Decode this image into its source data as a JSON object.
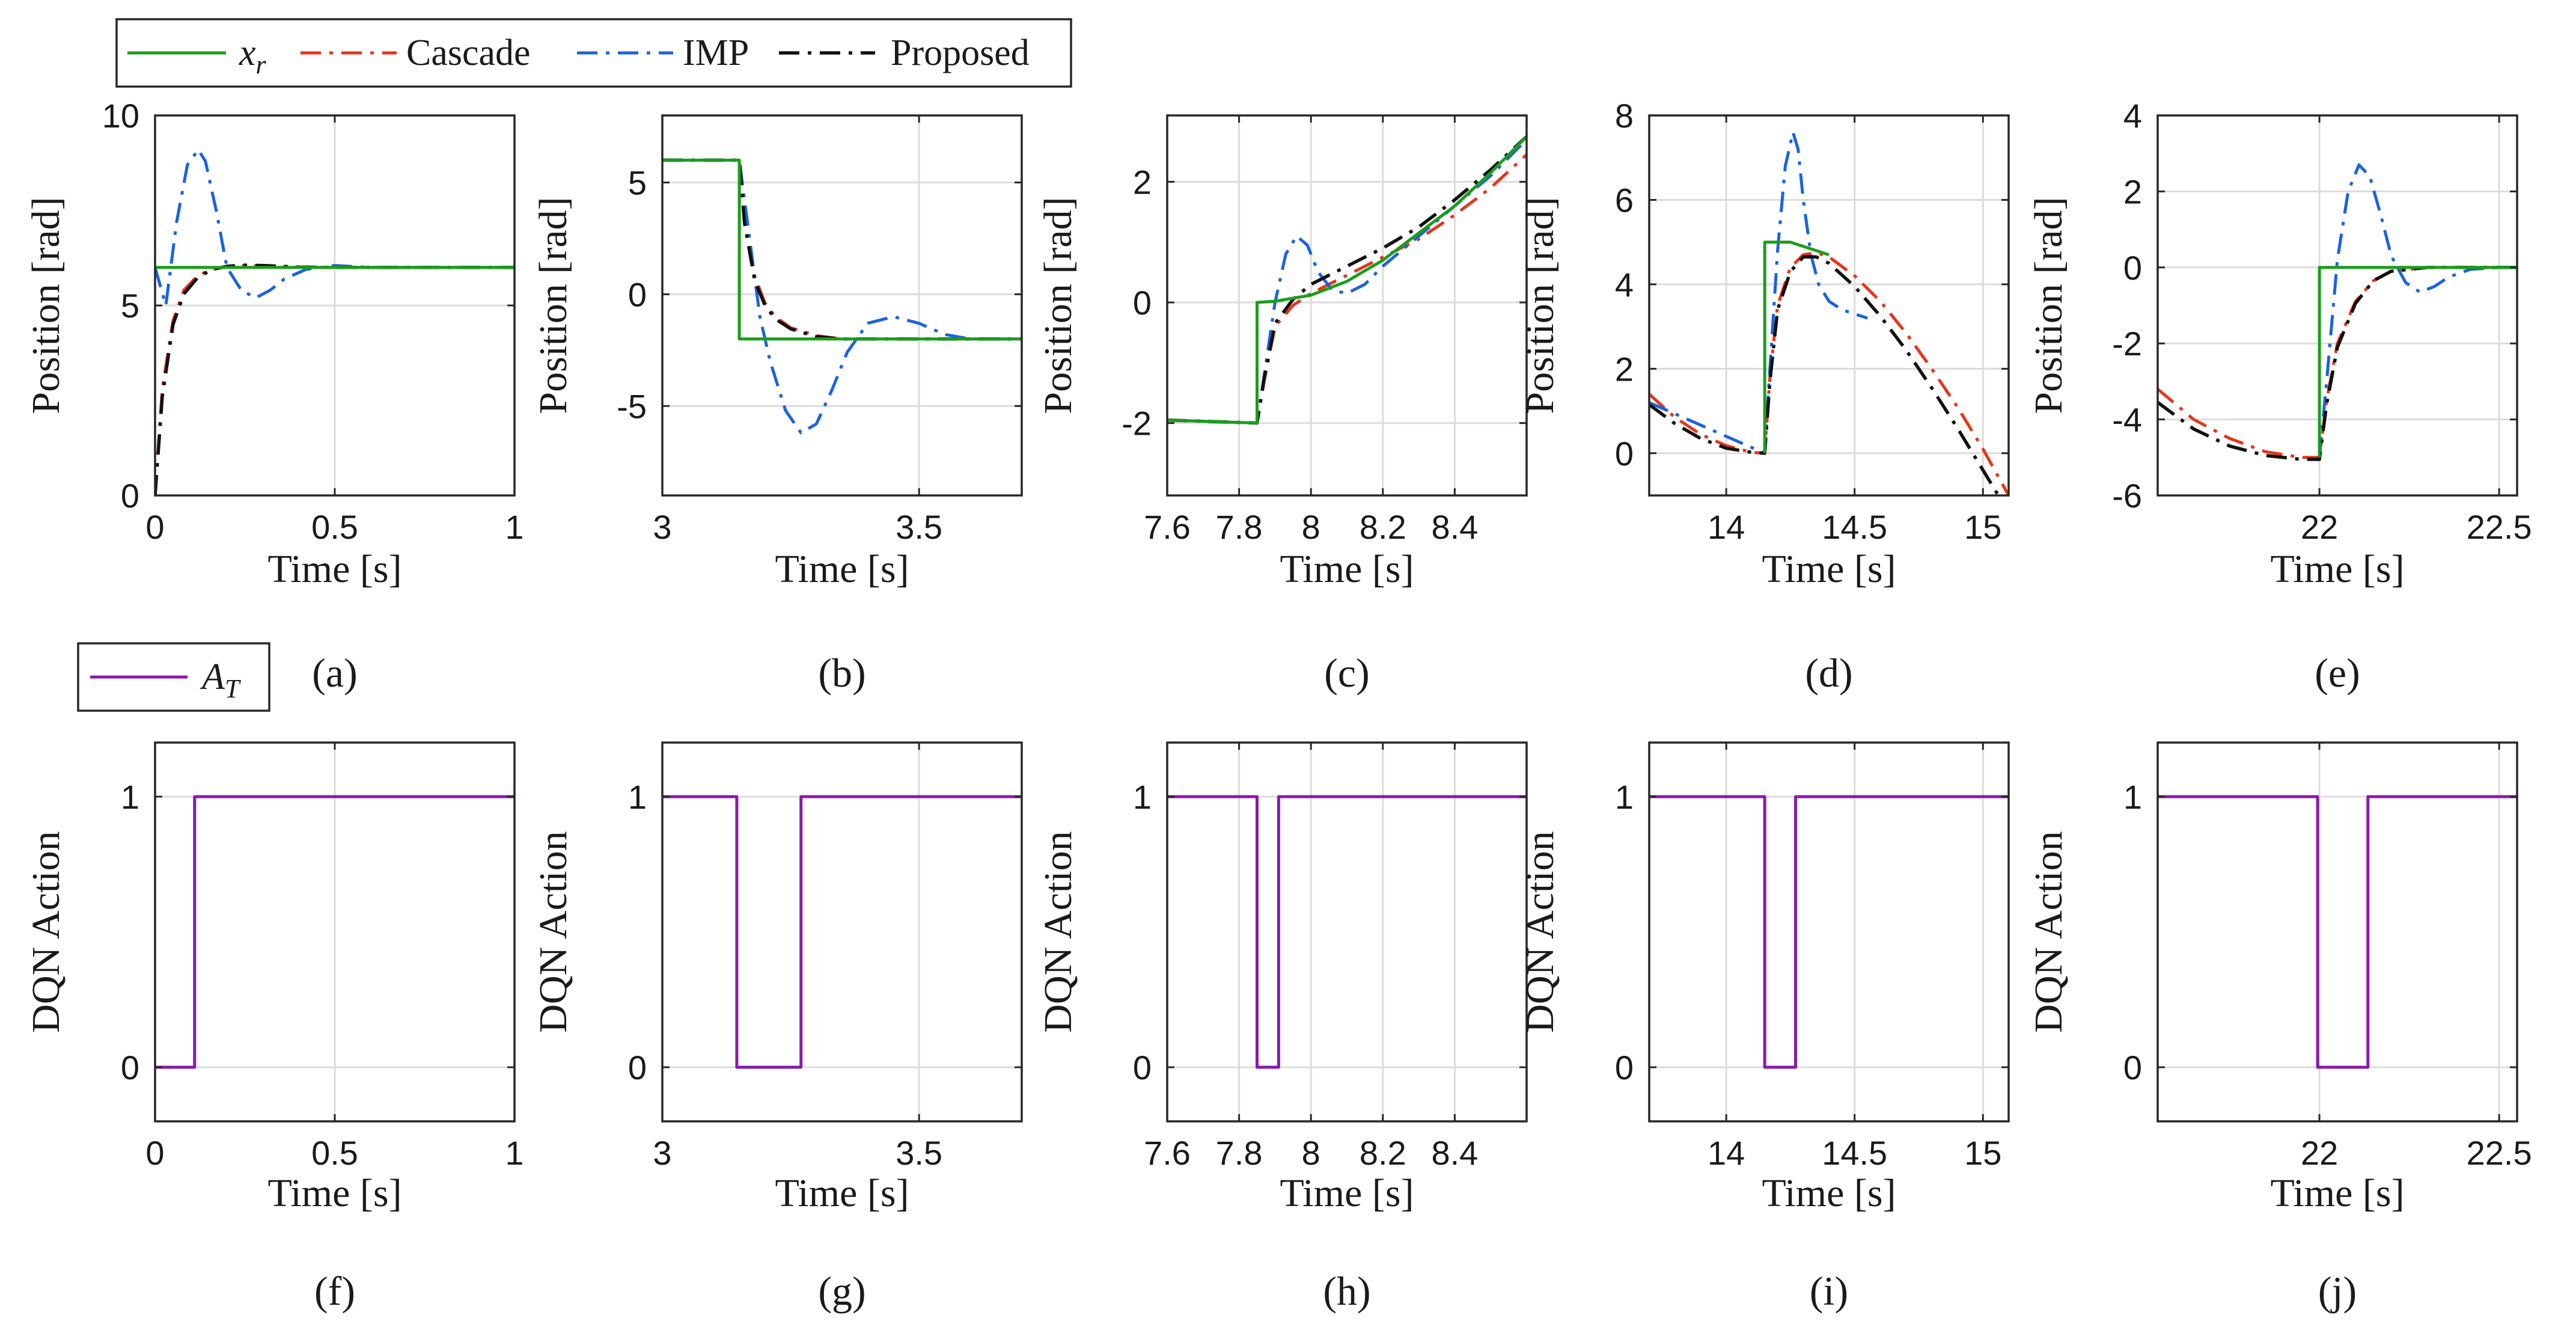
{
  "colors": {
    "xr": "#1a9e1a",
    "cascade": "#e8341c",
    "imp": "#1a63e0",
    "proposed": "#111111",
    "at": "#8a1aaa"
  },
  "legend_top": {
    "items": [
      {
        "key": "xr",
        "label_main": "x",
        "label_sub": "r",
        "style": "solid"
      },
      {
        "key": "cascade",
        "label": "Cascade",
        "style": "dashdot"
      },
      {
        "key": "imp",
        "label": "IMP",
        "style": "dashdot"
      },
      {
        "key": "proposed",
        "label": "Proposed",
        "style": "dashdot"
      }
    ]
  },
  "legend_bottom": {
    "items": [
      {
        "key": "at",
        "label_main": "A",
        "label_sub": "T",
        "style": "solid"
      }
    ]
  },
  "chart_data": [
    {
      "type": "line",
      "panel": "(a)",
      "xlabel": "Time [s]",
      "ylabel": "Position [rad]",
      "xlim": [
        0,
        1
      ],
      "ylim": [
        0,
        10
      ],
      "xticks": [
        0,
        0.5,
        1
      ],
      "xtick_labels": [
        "0",
        "0.5",
        "1"
      ],
      "yticks": [
        0,
        5,
        10
      ],
      "ytick_labels": [
        "0",
        "5",
        "10"
      ],
      "series": [
        {
          "name": "Cascade",
          "key": "cascade",
          "x": [
            0,
            0.02,
            0.05,
            0.08,
            0.12,
            0.16,
            0.2,
            0.25,
            0.3,
            0.4,
            0.5,
            1
          ],
          "y": [
            0,
            2.8,
            4.6,
            5.4,
            5.8,
            5.95,
            6.02,
            6.05,
            6.04,
            6.01,
            6.0,
            6.0
          ]
        },
        {
          "name": "IMP",
          "key": "imp",
          "x": [
            0,
            0.03,
            0.06,
            0.09,
            0.12,
            0.14,
            0.17,
            0.2,
            0.24,
            0.28,
            0.32,
            0.36,
            0.42,
            0.5,
            0.6,
            1
          ],
          "y": [
            6.0,
            5.0,
            7.2,
            8.7,
            9.1,
            8.8,
            7.5,
            6.0,
            5.4,
            5.2,
            5.4,
            5.7,
            5.95,
            6.05,
            6.0,
            6.0
          ]
        },
        {
          "name": "Proposed",
          "key": "proposed",
          "x": [
            0,
            0.02,
            0.05,
            0.08,
            0.12,
            0.16,
            0.2,
            0.25,
            0.3,
            0.4,
            0.5,
            1
          ],
          "y": [
            0,
            2.6,
            4.5,
            5.3,
            5.75,
            5.95,
            6.03,
            6.06,
            6.05,
            6.01,
            6.0,
            6.0
          ]
        },
        {
          "name": "x_r",
          "key": "xr",
          "x": [
            0,
            1
          ],
          "y": [
            6,
            6
          ]
        }
      ]
    },
    {
      "type": "line",
      "panel": "(b)",
      "xlabel": "Time [s]",
      "ylabel": "Position [rad]",
      "xlim": [
        3.0,
        3.7
      ],
      "ylim": [
        -9,
        8
      ],
      "xticks": [
        3,
        3.5
      ],
      "xtick_labels": [
        "3",
        "3.5"
      ],
      "yticks": [
        -5,
        0,
        5
      ],
      "ytick_labels": [
        "-5",
        "0",
        "5"
      ],
      "series": [
        {
          "name": "Cascade",
          "key": "cascade",
          "x": [
            3.0,
            3.15,
            3.16,
            3.18,
            3.2,
            3.22,
            3.25,
            3.3,
            3.35,
            3.4,
            3.5,
            3.7
          ],
          "y": [
            6,
            6,
            3.5,
            0.8,
            -0.4,
            -1.0,
            -1.5,
            -1.85,
            -2.0,
            -2.0,
            -2.0,
            -2.0
          ]
        },
        {
          "name": "IMP",
          "key": "imp",
          "x": [
            3.0,
            3.15,
            3.17,
            3.19,
            3.21,
            3.24,
            3.27,
            3.3,
            3.33,
            3.36,
            3.4,
            3.45,
            3.5,
            3.55,
            3.6,
            3.7
          ],
          "y": [
            6,
            6,
            2.5,
            -1.0,
            -3.0,
            -5.2,
            -6.2,
            -5.8,
            -4.3,
            -2.6,
            -1.3,
            -1.0,
            -1.3,
            -1.8,
            -2.0,
            -2.0
          ]
        },
        {
          "name": "Proposed",
          "key": "proposed",
          "x": [
            3.0,
            3.15,
            3.16,
            3.18,
            3.2,
            3.22,
            3.25,
            3.3,
            3.35,
            3.4,
            3.5,
            3.7
          ],
          "y": [
            6,
            6,
            3.2,
            0.6,
            -0.5,
            -1.1,
            -1.55,
            -1.9,
            -2.0,
            -2.0,
            -2.0,
            -2.0
          ]
        },
        {
          "name": "x_r",
          "key": "xr",
          "x": [
            3.0,
            3.15,
            3.15,
            3.7
          ],
          "y": [
            6,
            6,
            -2,
            -2
          ]
        }
      ]
    },
    {
      "type": "line",
      "panel": "(c)",
      "xlabel": "Time [s]",
      "ylabel": "Position [rad]",
      "xlim": [
        7.6,
        8.6
      ],
      "ylim": [
        -3.2,
        3.1
      ],
      "xticks": [
        7.6,
        7.8,
        8.0,
        8.2,
        8.4
      ],
      "xtick_labels": [
        "7.6",
        "7.8",
        "8",
        "8.2",
        "8.4"
      ],
      "yticks": [
        -2,
        0,
        2
      ],
      "ytick_labels": [
        "-2",
        "0",
        "2"
      ],
      "series": [
        {
          "name": "Cascade",
          "key": "cascade",
          "x": [
            7.6,
            7.85,
            7.87,
            7.9,
            7.95,
            8.0,
            8.05,
            8.1,
            8.15,
            8.2,
            8.3,
            8.4,
            8.5,
            8.6
          ],
          "y": [
            -1.95,
            -2.0,
            -1.3,
            -0.4,
            -0.05,
            0.15,
            0.3,
            0.45,
            0.6,
            0.75,
            1.05,
            1.45,
            1.9,
            2.45
          ]
        },
        {
          "name": "IMP",
          "key": "imp",
          "x": [
            7.6,
            7.85,
            7.87,
            7.9,
            7.93,
            7.96,
            7.99,
            8.02,
            8.06,
            8.1,
            8.15,
            8.2,
            8.3,
            8.4,
            8.5,
            8.6
          ],
          "y": [
            -1.95,
            -2.0,
            -1.2,
            0.0,
            0.8,
            1.1,
            0.95,
            0.5,
            0.2,
            0.15,
            0.3,
            0.6,
            1.1,
            1.6,
            2.1,
            2.7
          ]
        },
        {
          "name": "Proposed",
          "key": "proposed",
          "x": [
            7.6,
            7.85,
            7.87,
            7.9,
            7.95,
            8.0,
            8.05,
            8.1,
            8.15,
            8.2,
            8.3,
            8.4,
            8.5,
            8.6
          ],
          "y": [
            -1.95,
            -2.0,
            -1.25,
            -0.35,
            0.05,
            0.3,
            0.45,
            0.6,
            0.75,
            0.9,
            1.25,
            1.7,
            2.2,
            2.75
          ]
        },
        {
          "name": "x_r",
          "key": "xr",
          "x": [
            7.6,
            7.85,
            7.85,
            7.9,
            8.0,
            8.1,
            8.2,
            8.3,
            8.4,
            8.5,
            8.6
          ],
          "y": [
            -1.95,
            -2.0,
            0.0,
            0.02,
            0.12,
            0.35,
            0.7,
            1.15,
            1.6,
            2.15,
            2.75
          ]
        }
      ]
    },
    {
      "type": "line",
      "panel": "(d)",
      "xlabel": "Time [s]",
      "ylabel": "Position [rad]",
      "xlim": [
        13.7,
        15.1
      ],
      "ylim": [
        -1,
        8
      ],
      "xticks": [
        14,
        14.5,
        15
      ],
      "xtick_labels": [
        "14",
        "14.5",
        "15"
      ],
      "yticks": [
        0,
        2,
        4,
        6,
        8
      ],
      "ytick_labels": [
        "0",
        "2",
        "4",
        "6",
        "8"
      ],
      "series": [
        {
          "name": "Cascade",
          "key": "cascade",
          "x": [
            13.7,
            13.8,
            13.9,
            14.0,
            14.1,
            14.15,
            14.17,
            14.2,
            14.25,
            14.3,
            14.35,
            14.4,
            14.5,
            14.6,
            14.7,
            14.8,
            14.9,
            15.0,
            15.1
          ],
          "y": [
            1.4,
            0.85,
            0.45,
            0.18,
            0.02,
            0.0,
            1.8,
            3.5,
            4.4,
            4.7,
            4.75,
            4.65,
            4.2,
            3.6,
            2.85,
            2.0,
            1.1,
            0.1,
            -1.0
          ]
        },
        {
          "name": "IMP",
          "key": "imp",
          "x": [
            13.7,
            14.15,
            14.17,
            14.2,
            14.23,
            14.26,
            14.28,
            14.3,
            14.33,
            14.36,
            14.4,
            14.45,
            14.5,
            14.55
          ],
          "y": [
            1.2,
            0.0,
            2.0,
            4.8,
            6.8,
            7.6,
            7.2,
            6.0,
            4.7,
            4.0,
            3.6,
            3.4,
            3.3,
            3.2
          ]
        },
        {
          "name": "Proposed",
          "key": "proposed",
          "x": [
            13.7,
            13.8,
            13.9,
            14.0,
            14.1,
            14.15,
            14.17,
            14.2,
            14.25,
            14.3,
            14.35,
            14.4,
            14.5,
            14.6,
            14.7,
            14.8,
            14.9,
            15.0,
            15.1
          ],
          "y": [
            1.15,
            0.7,
            0.35,
            0.12,
            0.02,
            0.0,
            1.7,
            3.4,
            4.3,
            4.65,
            4.65,
            4.5,
            3.95,
            3.25,
            2.45,
            1.55,
            0.6,
            -0.4,
            -1.4
          ]
        },
        {
          "name": "x_r",
          "key": "xr",
          "x": [
            14.15,
            14.15,
            14.25,
            14.35,
            14.4
          ],
          "y": [
            0,
            5.0,
            5.0,
            4.8,
            4.7
          ]
        }
      ]
    },
    {
      "type": "line",
      "panel": "(e)",
      "xlabel": "Time [s]",
      "ylabel": "Position [rad]",
      "xlim": [
        21.55,
        22.55
      ],
      "ylim": [
        -6,
        4
      ],
      "xticks": [
        22,
        22.5
      ],
      "xtick_labels": [
        "22",
        "22.5"
      ],
      "yticks": [
        -6,
        -4,
        -2,
        0,
        2,
        4
      ],
      "ytick_labels": [
        "-6",
        "-4",
        "-2",
        "0",
        "2",
        "4"
      ],
      "series": [
        {
          "name": "Cascade",
          "key": "cascade",
          "x": [
            21.55,
            21.65,
            21.75,
            21.85,
            21.95,
            22.0,
            22.02,
            22.05,
            22.1,
            22.15,
            22.2,
            22.3,
            22.55
          ],
          "y": [
            -3.2,
            -4.0,
            -4.5,
            -4.85,
            -5.0,
            -5.0,
            -3.5,
            -2.0,
            -0.9,
            -0.35,
            -0.1,
            0.0,
            0.0
          ]
        },
        {
          "name": "IMP",
          "key": "imp",
          "x": [
            22.0,
            22.02,
            22.05,
            22.08,
            22.11,
            22.14,
            22.17,
            22.2,
            22.24,
            22.28,
            22.32,
            22.36,
            22.42,
            22.5,
            22.55
          ],
          "y": [
            -5.0,
            -3.0,
            0.2,
            2.0,
            2.7,
            2.4,
            1.4,
            0.3,
            -0.4,
            -0.65,
            -0.5,
            -0.25,
            -0.05,
            0.0,
            0.0
          ]
        },
        {
          "name": "Proposed",
          "key": "proposed",
          "x": [
            21.55,
            21.65,
            21.75,
            21.85,
            21.95,
            22.0,
            22.02,
            22.05,
            22.1,
            22.15,
            22.2,
            22.3,
            22.55
          ],
          "y": [
            -3.55,
            -4.25,
            -4.7,
            -4.95,
            -5.05,
            -5.05,
            -3.6,
            -2.1,
            -0.95,
            -0.35,
            -0.1,
            0.0,
            0.0
          ]
        },
        {
          "name": "x_r",
          "key": "xr",
          "x": [
            22.0,
            22.0,
            22.55
          ],
          "y": [
            -5.0,
            0,
            0
          ]
        }
      ]
    },
    {
      "type": "line",
      "panel": "(f)",
      "xlabel": "Time [s]",
      "ylabel": "DQN Action",
      "xlim": [
        0,
        1
      ],
      "ylim": [
        -0.2,
        1.2
      ],
      "xticks": [
        0,
        0.5,
        1
      ],
      "xtick_labels": [
        "0",
        "0.5",
        "1"
      ],
      "yticks": [
        0,
        1
      ],
      "ytick_labels": [
        "0",
        "1"
      ],
      "series": [
        {
          "name": "A_T",
          "key": "at",
          "x": [
            0,
            0.11,
            0.11,
            1
          ],
          "y": [
            0,
            0,
            1,
            1
          ]
        }
      ]
    },
    {
      "type": "line",
      "panel": "(g)",
      "xlabel": "Time [s]",
      "ylabel": "DQN Action",
      "xlim": [
        3.0,
        3.7
      ],
      "ylim": [
        -0.2,
        1.2
      ],
      "xticks": [
        3,
        3.5
      ],
      "xtick_labels": [
        "3",
        "3.5"
      ],
      "yticks": [
        0,
        1
      ],
      "ytick_labels": [
        "0",
        "1"
      ],
      "series": [
        {
          "name": "A_T",
          "key": "at",
          "x": [
            3.0,
            3.145,
            3.145,
            3.27,
            3.27,
            3.7
          ],
          "y": [
            1,
            1,
            0,
            0,
            1,
            1
          ]
        }
      ]
    },
    {
      "type": "line",
      "panel": "(h)",
      "xlabel": "Time [s]",
      "ylabel": "DQN Action",
      "xlim": [
        7.6,
        8.6
      ],
      "ylim": [
        -0.2,
        1.2
      ],
      "xticks": [
        7.6,
        7.8,
        8.0,
        8.2,
        8.4
      ],
      "xtick_labels": [
        "7.6",
        "7.8",
        "8",
        "8.2",
        "8.4"
      ],
      "yticks": [
        0,
        1
      ],
      "ytick_labels": [
        "0",
        "1"
      ],
      "series": [
        {
          "name": "A_T",
          "key": "at",
          "x": [
            7.6,
            7.85,
            7.85,
            7.91,
            7.91,
            8.6
          ],
          "y": [
            1,
            1,
            0,
            0,
            1,
            1
          ]
        }
      ]
    },
    {
      "type": "line",
      "panel": "(i)",
      "xlabel": "Time [s]",
      "ylabel": "DQN Action",
      "xlim": [
        13.7,
        15.1
      ],
      "ylim": [
        -0.2,
        1.2
      ],
      "xticks": [
        14,
        14.5,
        15
      ],
      "xtick_labels": [
        "14",
        "14.5",
        "15"
      ],
      "yticks": [
        0,
        1
      ],
      "ytick_labels": [
        "0",
        "1"
      ],
      "series": [
        {
          "name": "A_T",
          "key": "at",
          "x": [
            13.7,
            14.15,
            14.15,
            14.27,
            14.27,
            15.1
          ],
          "y": [
            1,
            1,
            0,
            0,
            1,
            1
          ]
        }
      ]
    },
    {
      "type": "line",
      "panel": "(j)",
      "xlabel": "Time [s]",
      "ylabel": "DQN Action",
      "xlim": [
        21.55,
        22.55
      ],
      "ylim": [
        -0.2,
        1.2
      ],
      "xticks": [
        22,
        22.5
      ],
      "xtick_labels": [
        "22",
        "22.5"
      ],
      "yticks": [
        0,
        1
      ],
      "ytick_labels": [
        "0",
        "1"
      ],
      "series": [
        {
          "name": "A_T",
          "key": "at",
          "x": [
            21.55,
            21.995,
            21.995,
            22.135,
            22.135,
            22.55
          ],
          "y": [
            1,
            1,
            0,
            0,
            1,
            1
          ]
        }
      ]
    }
  ]
}
